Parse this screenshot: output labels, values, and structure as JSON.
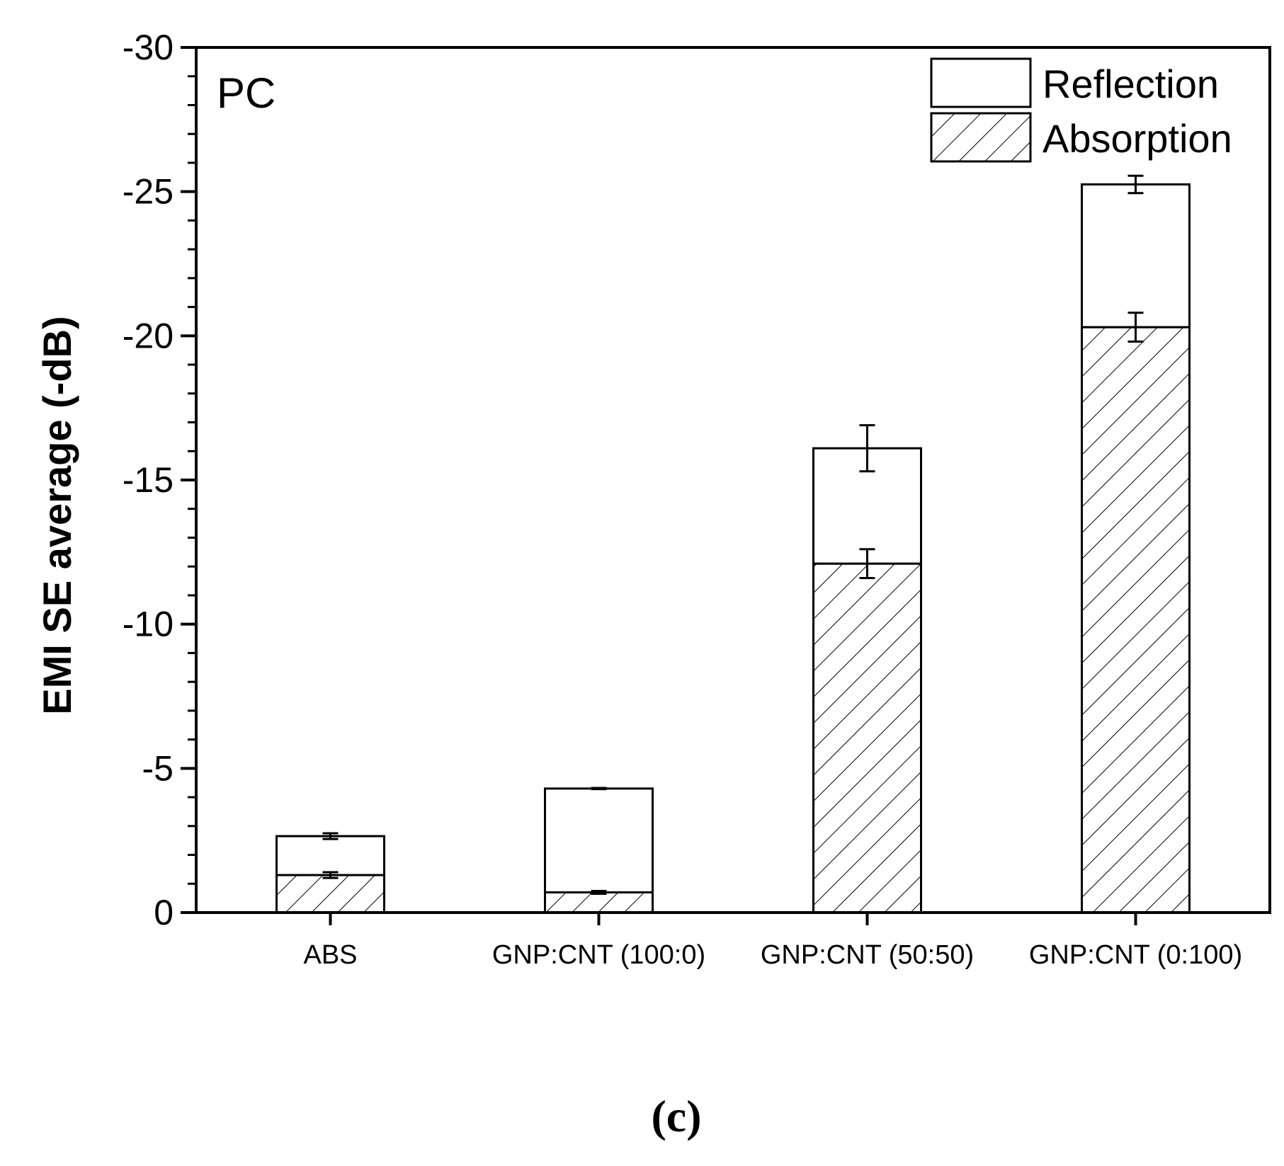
{
  "chart_data": {
    "type": "bar",
    "stacked": true,
    "categories": [
      "ABS",
      "GNP:CNT (100:0)",
      "GNP:CNT (50:50)",
      "GNP:CNT (0:100)"
    ],
    "series": [
      {
        "name": "Absorption",
        "pattern": "hatched",
        "values": [
          -1.3,
          -0.7,
          -12.1,
          -20.3
        ],
        "errors": [
          0.1,
          0.05,
          0.5,
          0.5
        ]
      },
      {
        "name": "Reflection",
        "pattern": "plain",
        "values": [
          -1.35,
          -3.6,
          -4.0,
          -4.95
        ],
        "errors": [
          0.1,
          0.02,
          0.8,
          0.3
        ]
      }
    ],
    "ylabel": "EMI SE average (-dB)",
    "xlabel": "",
    "ylim": [
      0,
      -30
    ],
    "yticks": [
      0,
      -5,
      -10,
      -15,
      -20,
      -25,
      -30
    ],
    "ytick_labels": [
      "0",
      "-5",
      "-10",
      "-15",
      "-20",
      "-25",
      "-30"
    ],
    "annotation": "PC",
    "legend": {
      "position": "top-right",
      "entries": [
        "Reflection",
        "Absorption"
      ]
    },
    "caption": "(c)",
    "colors": {
      "bar_fill": "#ffffff",
      "stroke": "#000000",
      "hatch": "#000000"
    }
  }
}
